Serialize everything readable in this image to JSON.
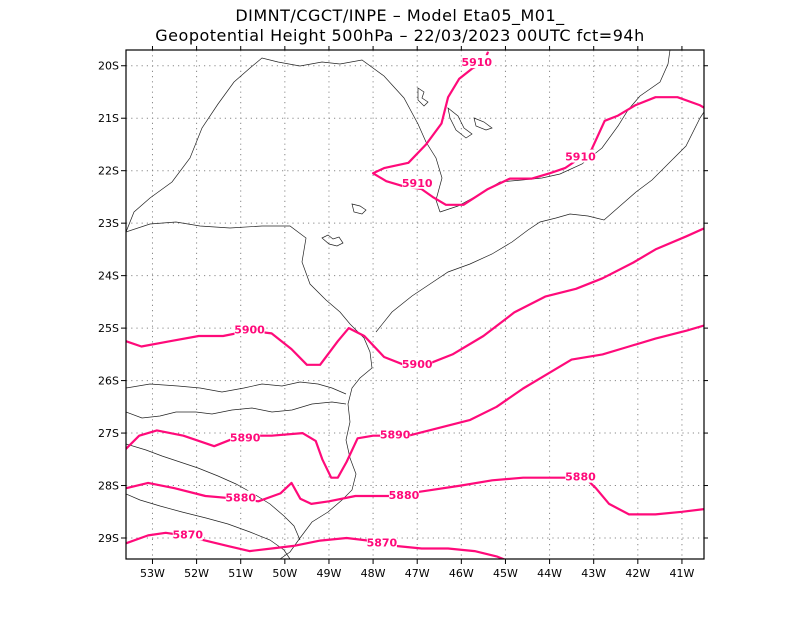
{
  "header": {
    "line1": "DIMNT/CGCT/INPE  –   Model Eta05_M01_",
    "line2": "Geopotential Height 500hPa –   22/03/2023 00UTC fct=94h"
  },
  "chart_data": {
    "type": "contour",
    "xlim": [
      -53.6,
      -40.5
    ],
    "ylim": [
      -29.4,
      -19.7
    ],
    "x_ticks": [
      {
        "value": -53,
        "label": "53W"
      },
      {
        "value": -52,
        "label": "52W"
      },
      {
        "value": -51,
        "label": "51W"
      },
      {
        "value": -50,
        "label": "50W"
      },
      {
        "value": -49,
        "label": "49W"
      },
      {
        "value": -48,
        "label": "48W"
      },
      {
        "value": -47,
        "label": "47W"
      },
      {
        "value": -46,
        "label": "46W"
      },
      {
        "value": -45,
        "label": "45W"
      },
      {
        "value": -44,
        "label": "44W"
      },
      {
        "value": -43,
        "label": "43W"
      },
      {
        "value": -42,
        "label": "42W"
      },
      {
        "value": -41,
        "label": "41W"
      }
    ],
    "y_ticks": [
      {
        "value": -20,
        "label": "20S"
      },
      {
        "value": -21,
        "label": "21S"
      },
      {
        "value": -22,
        "label": "22S"
      },
      {
        "value": -23,
        "label": "23S"
      },
      {
        "value": -24,
        "label": "24S"
      },
      {
        "value": -25,
        "label": "25S"
      },
      {
        "value": -26,
        "label": "26S"
      },
      {
        "value": -27,
        "label": "27S"
      },
      {
        "value": -28,
        "label": "28S"
      },
      {
        "value": -29,
        "label": "29S"
      }
    ],
    "grid": "dotted",
    "line_color": "#ff0a7a",
    "map_color": "#222222",
    "contours": [
      {
        "level": 5910,
        "label": "5910",
        "labels_at": [
          [
            -45.65,
            -19.95
          ],
          [
            -43.3,
            -21.75
          ],
          [
            -47.0,
            -22.25
          ]
        ],
        "paths": [
          [
            [
              -45.4,
              -19.75
            ],
            [
              -45.5,
              -19.95
            ],
            [
              -45.75,
              -20.05
            ],
            [
              -46.05,
              -20.25
            ],
            [
              -46.3,
              -20.6
            ],
            [
              -46.45,
              -21.1
            ],
            [
              -46.8,
              -21.5
            ],
            [
              -47.2,
              -21.85
            ],
            [
              -47.75,
              -21.95
            ],
            [
              -48.0,
              -22.05
            ],
            [
              -47.7,
              -22.2
            ],
            [
              -47.3,
              -22.3
            ],
            [
              -46.9,
              -22.35
            ],
            [
              -46.65,
              -22.5
            ],
            [
              -46.35,
              -22.65
            ],
            [
              -45.95,
              -22.65
            ],
            [
              -45.4,
              -22.35
            ],
            [
              -44.9,
              -22.15
            ],
            [
              -44.4,
              -22.15
            ],
            [
              -44.0,
              -22.05
            ],
            [
              -43.65,
              -21.95
            ],
            [
              -43.3,
              -21.75
            ],
            [
              -43.05,
              -21.6
            ],
            [
              -42.75,
              -21.05
            ],
            [
              -42.45,
              -20.95
            ],
            [
              -42.05,
              -20.75
            ],
            [
              -41.6,
              -20.6
            ],
            [
              -41.1,
              -20.6
            ],
            [
              -40.6,
              -20.75
            ],
            [
              -40.5,
              -20.8
            ]
          ]
        ]
      },
      {
        "level": 5900,
        "label": "5900",
        "labels_at": [
          [
            -50.8,
            -25.05
          ],
          [
            -47.0,
            -25.7
          ]
        ],
        "paths": [
          [
            [
              -53.6,
              -25.25
            ],
            [
              -53.25,
              -25.35
            ],
            [
              -52.6,
              -25.25
            ],
            [
              -51.95,
              -25.15
            ],
            [
              -51.4,
              -25.15
            ],
            [
              -50.8,
              -25.05
            ],
            [
              -50.3,
              -25.1
            ],
            [
              -49.85,
              -25.4
            ],
            [
              -49.5,
              -25.7
            ],
            [
              -49.2,
              -25.7
            ],
            [
              -48.8,
              -25.25
            ],
            [
              -48.55,
              -25.0
            ],
            [
              -48.2,
              -25.15
            ],
            [
              -47.75,
              -25.55
            ],
            [
              -47.3,
              -25.7
            ],
            [
              -46.8,
              -25.7
            ],
            [
              -46.2,
              -25.5
            ],
            [
              -45.5,
              -25.15
            ],
            [
              -44.8,
              -24.7
            ],
            [
              -44.1,
              -24.4
            ],
            [
              -43.4,
              -24.25
            ],
            [
              -42.8,
              -24.05
            ],
            [
              -42.1,
              -23.75
            ],
            [
              -41.6,
              -23.5
            ],
            [
              -40.9,
              -23.25
            ],
            [
              -40.5,
              -23.1
            ]
          ]
        ]
      },
      {
        "level": 5890,
        "label": "5890",
        "labels_at": [
          [
            -50.9,
            -27.1
          ],
          [
            -47.5,
            -27.05
          ]
        ],
        "paths": [
          [
            [
              -53.6,
              -27.3
            ],
            [
              -53.3,
              -27.05
            ],
            [
              -52.9,
              -26.95
            ],
            [
              -52.3,
              -27.05
            ],
            [
              -51.6,
              -27.25
            ],
            [
              -51.0,
              -27.05
            ],
            [
              -50.3,
              -27.05
            ],
            [
              -49.6,
              -27.0
            ],
            [
              -49.3,
              -27.15
            ],
            [
              -49.15,
              -27.5
            ],
            [
              -48.95,
              -27.85
            ],
            [
              -48.8,
              -27.85
            ],
            [
              -48.6,
              -27.55
            ],
            [
              -48.35,
              -27.1
            ],
            [
              -48.0,
              -27.05
            ],
            [
              -47.2,
              -27.05
            ],
            [
              -46.5,
              -26.9
            ],
            [
              -45.8,
              -26.75
            ],
            [
              -45.2,
              -26.5
            ],
            [
              -44.6,
              -26.15
            ],
            [
              -44.0,
              -25.85
            ],
            [
              -43.5,
              -25.6
            ],
            [
              -42.8,
              -25.5
            ],
            [
              -42.2,
              -25.35
            ],
            [
              -41.6,
              -25.2
            ],
            [
              -40.9,
              -25.05
            ],
            [
              -40.5,
              -24.95
            ]
          ]
        ]
      },
      {
        "level": 5880,
        "label": "5880",
        "labels_at": [
          [
            -51.0,
            -28.25
          ],
          [
            -47.3,
            -28.2
          ],
          [
            -43.3,
            -27.85
          ]
        ],
        "paths": [
          [
            [
              -53.6,
              -28.05
            ],
            [
              -53.1,
              -27.95
            ],
            [
              -52.5,
              -28.05
            ],
            [
              -51.8,
              -28.2
            ],
            [
              -51.1,
              -28.25
            ],
            [
              -50.6,
              -28.3
            ],
            [
              -50.1,
              -28.15
            ],
            [
              -49.85,
              -27.95
            ],
            [
              -49.65,
              -28.25
            ],
            [
              -49.4,
              -28.35
            ],
            [
              -49.0,
              -28.3
            ],
            [
              -48.4,
              -28.2
            ],
            [
              -47.6,
              -28.2
            ],
            [
              -46.8,
              -28.1
            ],
            [
              -46.0,
              -28.0
            ],
            [
              -45.3,
              -27.9
            ],
            [
              -44.6,
              -27.85
            ],
            [
              -43.9,
              -27.85
            ],
            [
              -43.2,
              -27.85
            ],
            [
              -42.95,
              -28.05
            ],
            [
              -42.65,
              -28.35
            ],
            [
              -42.2,
              -28.55
            ],
            [
              -41.6,
              -28.55
            ],
            [
              -41.0,
              -28.5
            ],
            [
              -40.5,
              -28.45
            ]
          ]
        ]
      },
      {
        "level": 5870,
        "label": "5870",
        "labels_at": [
          [
            -52.2,
            -28.95
          ],
          [
            -47.8,
            -29.1
          ]
        ],
        "paths": [
          [
            [
              -53.6,
              -29.1
            ],
            [
              -53.1,
              -28.95
            ],
            [
              -52.7,
              -28.9
            ],
            [
              -52.3,
              -28.95
            ],
            [
              -51.8,
              -29.05
            ],
            [
              -51.3,
              -29.15
            ],
            [
              -50.8,
              -29.25
            ],
            [
              -50.3,
              -29.2
            ],
            [
              -49.8,
              -29.15
            ],
            [
              -49.2,
              -29.05
            ],
            [
              -48.6,
              -29.0
            ],
            [
              -48.1,
              -29.05
            ],
            [
              -47.5,
              -29.15
            ],
            [
              -46.9,
              -29.2
            ],
            [
              -46.3,
              -29.2
            ],
            [
              -45.7,
              -29.25
            ],
            [
              -45.2,
              -29.35
            ],
            [
              -44.9,
              -29.45
            ]
          ]
        ]
      }
    ]
  }
}
